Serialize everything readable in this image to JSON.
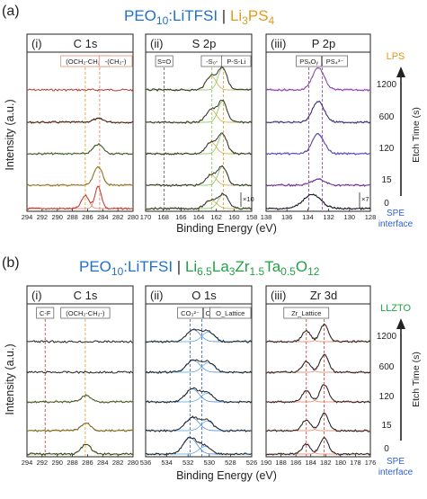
{
  "colors": {
    "peo": "#1f6fd0",
    "lps": "#e39b1a",
    "llzto": "#23a045",
    "spe": "#2e5fd6",
    "ink": "#222222",
    "box_border": "#e07a5f"
  },
  "rows": [
    {
      "label": "(a)",
      "title": {
        "part1": "PEO",
        "sub1": "10",
        "part2": ":LiTFSI",
        "sep": " | ",
        "part3": "Li",
        "sub3a": "3",
        "part4": "PS",
        "sub4": "4"
      },
      "material": "LPS",
      "ylabel": "Intensity (a.u.)",
      "xlabel": "Binding Energy (eV)",
      "side_label": "Etch Time (s)",
      "times": [
        "1200",
        "600",
        "120",
        "15",
        "0"
      ],
      "bottom_label_1": "SPE",
      "bottom_label_2": "interface",
      "panels": [
        {
          "roman": "(i)",
          "name": "C 1s",
          "ticks": [
            "294",
            "292",
            "290",
            "288",
            "286",
            "284",
            "282",
            "280"
          ],
          "tags": [
            "(OCH₂-CH₂-)",
            "-(CH₂-)"
          ],
          "extra": ""
        },
        {
          "roman": "(ii)",
          "name": "S 2p",
          "ticks": [
            "170",
            "168",
            "166",
            "164",
            "162",
            "160",
            "158"
          ],
          "tags": [
            "S=O",
            "-S₀-",
            "P-S-Li"
          ],
          "extra": "×10"
        },
        {
          "roman": "(iii)",
          "name": "P 2p",
          "ticks": [
            "138",
            "136",
            "134",
            "132",
            "130",
            "128"
          ],
          "tags": [
            "PSₓOᵧ",
            "PS₄³⁻"
          ],
          "extra": "×7"
        }
      ]
    },
    {
      "label": "(b)",
      "title": {
        "part1": "PEO",
        "sub1": "10",
        "part2": ":LiTFSI",
        "sep": " | ",
        "part3": "Li",
        "sub3a": "6.5",
        "part4": "La",
        "sub4": "3",
        "part5": "Zr",
        "sub5": "1.5",
        "part6": "Ta",
        "sub6": "0.5",
        "part7": "O",
        "sub7": "12"
      },
      "material": "LLZTO",
      "ylabel": "Intensity (a.u.)",
      "xlabel": "Binding Energy (eV)",
      "side_label": "Etch Time (s)",
      "times": [
        "1200",
        "600",
        "120",
        "15",
        "0"
      ],
      "bottom_label_1": "SPE",
      "bottom_label_2": "interface",
      "panels": [
        {
          "roman": "(i)",
          "name": "C 1s",
          "ticks": [
            "294",
            "292",
            "290",
            "288",
            "286",
            "284",
            "282",
            "280"
          ],
          "tags": [
            "C-F",
            "(OCH₂-CH₂-)"
          ],
          "extra": ""
        },
        {
          "roman": "(ii)",
          "name": "O 1s",
          "ticks": [
            "536",
            "534",
            "532",
            "530",
            "528",
            "526"
          ],
          "tags": [
            "CO₃²⁻",
            "OH⁻",
            "O_Lattice"
          ],
          "extra": ""
        },
        {
          "roman": "(iii)",
          "name": "Zr 3d",
          "ticks": [
            "190",
            "188",
            "186",
            "184",
            "182",
            "180",
            "178",
            "176"
          ],
          "tags": [
            "Zr_Lattice"
          ],
          "extra": ""
        }
      ]
    }
  ],
  "chart_data": [
    {
      "type": "line",
      "title": "PEO10:LiTFSI | Li3PS4",
      "xlabel": "Binding Energy (eV)",
      "ylabel": "Intensity (a.u.)",
      "series_axis": "Etch Time (s)",
      "series_order_top_to_bottom": [
        "1200",
        "600",
        "120",
        "15",
        "0"
      ],
      "panels": [
        {
          "title": "C 1s",
          "xlim": [
            294,
            280
          ],
          "reversed": true,
          "markers": [
            286.3,
            284.4
          ],
          "series": [
            {
              "etch_time": "1200",
              "peaks": []
            },
            {
              "etch_time": "600",
              "peaks": [
                {
                  "x": 284.6,
                  "height": 0.15,
                  "width": 1.0
                }
              ]
            },
            {
              "etch_time": "120",
              "peaks": [
                {
                  "x": 284.6,
                  "height": 0.4,
                  "width": 0.9
                }
              ]
            },
            {
              "etch_time": "15",
              "peaks": [
                {
                  "x": 284.6,
                  "height": 0.8,
                  "width": 0.8
                }
              ]
            },
            {
              "etch_time": "0",
              "peaks": [
                {
                  "x": 286.3,
                  "height": 0.55,
                  "width": 0.7
                },
                {
                  "x": 284.6,
                  "height": 0.95,
                  "width": 0.6
                }
              ]
            }
          ]
        },
        {
          "title": "S 2p",
          "xlim": [
            170,
            158
          ],
          "reversed": true,
          "markers": [
            167.9,
            162.5,
            161.2
          ],
          "series": [
            {
              "etch_time": "1200",
              "peaks": [
                {
                  "x": 162.6,
                  "height": 0.6,
                  "width": 0.8
                },
                {
                  "x": 161.3,
                  "height": 0.95,
                  "width": 0.7
                }
              ]
            },
            {
              "etch_time": "600",
              "peaks": [
                {
                  "x": 162.6,
                  "height": 0.55,
                  "width": 0.8
                },
                {
                  "x": 161.3,
                  "height": 0.9,
                  "width": 0.7
                }
              ]
            },
            {
              "etch_time": "120",
              "peaks": [
                {
                  "x": 162.6,
                  "height": 0.5,
                  "width": 0.8
                },
                {
                  "x": 161.3,
                  "height": 0.85,
                  "width": 0.7
                }
              ]
            },
            {
              "etch_time": "15",
              "peaks": [
                {
                  "x": 162.6,
                  "height": 0.45,
                  "width": 0.8
                },
                {
                  "x": 161.3,
                  "height": 0.8,
                  "width": 0.7
                }
              ]
            },
            {
              "etch_time": "0",
              "peaks": [
                {
                  "x": 162.6,
                  "height": 0.35,
                  "width": 0.9
                },
                {
                  "x": 161.2,
                  "height": 0.6,
                  "width": 0.8
                }
              ]
            }
          ]
        },
        {
          "title": "P 2p",
          "xlim": [
            138,
            128
          ],
          "reversed": true,
          "markers": [
            133.9,
            132.6
          ],
          "series": [
            {
              "etch_time": "1200",
              "peaks": [
                {
                  "x": 133.0,
                  "height": 0.95,
                  "width": 0.8
                }
              ]
            },
            {
              "etch_time": "600",
              "peaks": [
                {
                  "x": 133.0,
                  "height": 0.9,
                  "width": 0.8
                }
              ]
            },
            {
              "etch_time": "120",
              "peaks": [
                {
                  "x": 133.0,
                  "height": 0.85,
                  "width": 0.8
                }
              ]
            },
            {
              "etch_time": "15",
              "peaks": [
                {
                  "x": 133.0,
                  "height": 0.25,
                  "width": 0.9
                }
              ]
            },
            {
              "etch_time": "0",
              "peaks": [
                {
                  "x": 133.6,
                  "height": 0.6,
                  "width": 1.2
                }
              ]
            }
          ]
        }
      ]
    },
    {
      "type": "line",
      "title": "PEO10:LiTFSI | Li6.5La3Zr1.5Ta0.5O12",
      "xlabel": "Binding Energy (eV)",
      "ylabel": "Intensity (a.u.)",
      "series_axis": "Etch Time (s)",
      "series_order_top_to_bottom": [
        "1200",
        "600",
        "120",
        "15",
        "0"
      ],
      "panels": [
        {
          "title": "C 1s",
          "xlim": [
            294,
            280
          ],
          "reversed": true,
          "markers": [
            291.6,
            286.3
          ],
          "series": [
            {
              "etch_time": "1200",
              "peaks": []
            },
            {
              "etch_time": "600",
              "peaks": []
            },
            {
              "etch_time": "120",
              "peaks": [
                {
                  "x": 286.2,
                  "height": 0.3,
                  "width": 0.9
                }
              ]
            },
            {
              "etch_time": "15",
              "peaks": [
                {
                  "x": 286.2,
                  "height": 0.35,
                  "width": 0.9
                }
              ]
            },
            {
              "etch_time": "0",
              "peaks": [
                {
                  "x": 286.2,
                  "height": 0.45,
                  "width": 0.9
                }
              ]
            }
          ]
        },
        {
          "title": "O 1s",
          "xlim": [
            536,
            526
          ],
          "reversed": true,
          "markers": [
            531.8,
            530.7
          ],
          "series": [
            {
              "etch_time": "1200",
              "peaks": [
                {
                  "x": 531.5,
                  "height": 0.55,
                  "width": 0.9
                },
                {
                  "x": 530.1,
                  "height": 0.45,
                  "width": 0.8
                }
              ]
            },
            {
              "etch_time": "600",
              "peaks": [
                {
                  "x": 531.5,
                  "height": 0.55,
                  "width": 0.9
                },
                {
                  "x": 530.1,
                  "height": 0.45,
                  "width": 0.8
                }
              ]
            },
            {
              "etch_time": "120",
              "peaks": [
                {
                  "x": 531.6,
                  "height": 0.6,
                  "width": 0.9
                },
                {
                  "x": 530.2,
                  "height": 0.4,
                  "width": 0.8
                }
              ]
            },
            {
              "etch_time": "15",
              "peaks": [
                {
                  "x": 531.6,
                  "height": 0.6,
                  "width": 0.9
                },
                {
                  "x": 530.2,
                  "height": 0.45,
                  "width": 0.8
                }
              ]
            },
            {
              "etch_time": "0",
              "peaks": [
                {
                  "x": 531.8,
                  "height": 0.75,
                  "width": 0.9
                },
                {
                  "x": 530.4,
                  "height": 0.35,
                  "width": 0.8
                }
              ]
            }
          ]
        },
        {
          "title": "Zr 3d",
          "xlim": [
            190,
            176
          ],
          "reversed": true,
          "markers": [
            184.6,
            182.2
          ],
          "series": [
            {
              "etch_time": "1200",
              "peaks": [
                {
                  "x": 184.6,
                  "height": 0.5,
                  "width": 0.8
                },
                {
                  "x": 182.2,
                  "height": 0.8,
                  "width": 0.8
                }
              ]
            },
            {
              "etch_time": "600",
              "peaks": [
                {
                  "x": 184.6,
                  "height": 0.5,
                  "width": 0.8
                },
                {
                  "x": 182.2,
                  "height": 0.8,
                  "width": 0.8
                }
              ]
            },
            {
              "etch_time": "120",
              "peaks": [
                {
                  "x": 184.6,
                  "height": 0.5,
                  "width": 0.8
                },
                {
                  "x": 182.2,
                  "height": 0.8,
                  "width": 0.8
                }
              ]
            },
            {
              "etch_time": "15",
              "peaks": [
                {
                  "x": 184.6,
                  "height": 0.5,
                  "width": 0.8
                },
                {
                  "x": 182.2,
                  "height": 0.8,
                  "width": 0.8
                }
              ]
            },
            {
              "etch_time": "0",
              "peaks": [
                {
                  "x": 184.6,
                  "height": 0.45,
                  "width": 0.8
                },
                {
                  "x": 182.2,
                  "height": 0.75,
                  "width": 0.8
                }
              ]
            }
          ]
        }
      ]
    }
  ]
}
